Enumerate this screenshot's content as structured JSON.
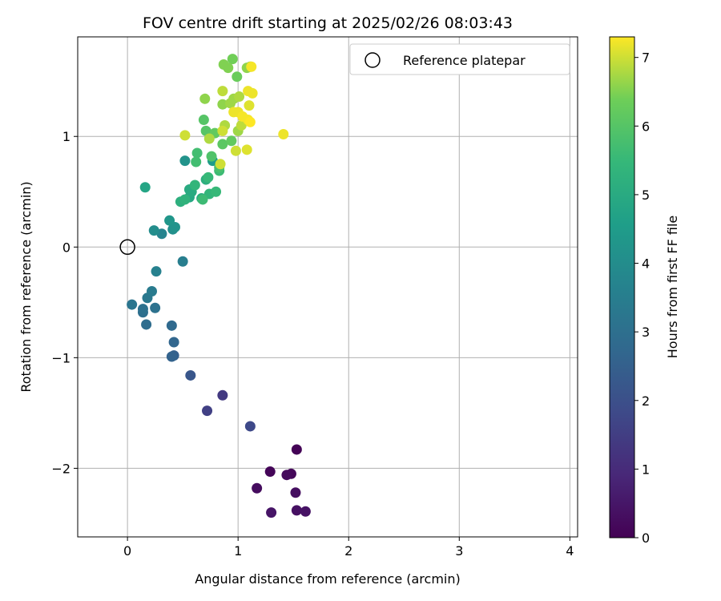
{
  "chart_data": {
    "type": "scatter",
    "title": "FOV centre drift starting at 2025/02/26 08:03:43",
    "xlabel": "Angular distance from reference (arcmin)",
    "ylabel": "Rotation from reference (arcmin)",
    "xlim": [
      -0.45,
      4.07
    ],
    "ylim": [
      -2.62,
      1.9
    ],
    "xticks": [
      0,
      1,
      2,
      3,
      4
    ],
    "yticks": [
      -2,
      -1,
      0,
      1
    ],
    "xtick_labels": [
      "0",
      "1",
      "2",
      "3",
      "4"
    ],
    "ytick_labels": [
      "−2",
      "−1",
      "0",
      "1"
    ],
    "grid": true,
    "legend": {
      "position": "top-right",
      "entries": [
        "Reference platepar"
      ]
    },
    "reference_point": {
      "x": 0,
      "y": 0
    },
    "colorbar": {
      "label": "Hours from first FF file",
      "colormap": "viridis",
      "range": [
        0,
        7.3
      ],
      "ticks": [
        0,
        1,
        2,
        3,
        4,
        5,
        6,
        7
      ],
      "tick_labels": [
        "0",
        "1",
        "2",
        "3",
        "4",
        "5",
        "6",
        "7"
      ]
    },
    "points": [
      {
        "x": 1.53,
        "y": -1.83,
        "t": 0.05
      },
      {
        "x": 1.29,
        "y": -2.03,
        "t": 0.1
      },
      {
        "x": 1.48,
        "y": -2.05,
        "t": 0.15
      },
      {
        "x": 1.44,
        "y": -2.06,
        "t": 0.2
      },
      {
        "x": 1.17,
        "y": -2.18,
        "t": 0.25
      },
      {
        "x": 1.52,
        "y": -2.22,
        "t": 0.3
      },
      {
        "x": 1.53,
        "y": -2.38,
        "t": 0.35
      },
      {
        "x": 1.61,
        "y": -2.39,
        "t": 0.4
      },
      {
        "x": 1.3,
        "y": -2.4,
        "t": 0.45
      },
      {
        "x": 0.86,
        "y": -1.34,
        "t": 1.4
      },
      {
        "x": 0.72,
        "y": -1.48,
        "t": 1.55
      },
      {
        "x": 1.11,
        "y": -1.62,
        "t": 1.8
      },
      {
        "x": 0.57,
        "y": -1.16,
        "t": 2.2
      },
      {
        "x": 0.42,
        "y": -0.98,
        "t": 2.5
      },
      {
        "x": 0.4,
        "y": -0.99,
        "t": 2.6
      },
      {
        "x": 0.42,
        "y": -0.86,
        "t": 2.7
      },
      {
        "x": 0.4,
        "y": -0.71,
        "t": 2.8
      },
      {
        "x": 0.17,
        "y": -0.7,
        "t": 2.9
      },
      {
        "x": 0.14,
        "y": -0.59,
        "t": 3.0
      },
      {
        "x": 0.14,
        "y": -0.56,
        "t": 3.05
      },
      {
        "x": 0.25,
        "y": -0.55,
        "t": 3.1
      },
      {
        "x": 0.04,
        "y": -0.52,
        "t": 3.2
      },
      {
        "x": 0.18,
        "y": -0.46,
        "t": 3.3
      },
      {
        "x": 0.22,
        "y": -0.4,
        "t": 3.4
      },
      {
        "x": 0.5,
        "y": -0.13,
        "t": 3.5
      },
      {
        "x": 0.26,
        "y": -0.22,
        "t": 3.6
      },
      {
        "x": 0.31,
        "y": 0.12,
        "t": 3.7
      },
      {
        "x": 0.24,
        "y": 0.15,
        "t": 4.0
      },
      {
        "x": 0.41,
        "y": 0.16,
        "t": 4.1
      },
      {
        "x": 0.43,
        "y": 0.18,
        "t": 4.2
      },
      {
        "x": 0.38,
        "y": 0.24,
        "t": 4.3
      },
      {
        "x": 0.52,
        "y": 0.78,
        "t": 4.2
      },
      {
        "x": 0.77,
        "y": 0.78,
        "t": 4.5
      },
      {
        "x": 0.16,
        "y": 0.54,
        "t": 4.8
      },
      {
        "x": 0.56,
        "y": 0.45,
        "t": 4.9
      },
      {
        "x": 0.58,
        "y": 0.5,
        "t": 5.0
      },
      {
        "x": 0.56,
        "y": 0.52,
        "t": 5.0
      },
      {
        "x": 0.67,
        "y": 0.44,
        "t": 5.1
      },
      {
        "x": 0.71,
        "y": 0.61,
        "t": 5.2
      },
      {
        "x": 0.48,
        "y": 0.41,
        "t": 5.2
      },
      {
        "x": 0.52,
        "y": 0.43,
        "t": 5.3
      },
      {
        "x": 0.61,
        "y": 0.56,
        "t": 5.4
      },
      {
        "x": 0.74,
        "y": 0.48,
        "t": 5.4
      },
      {
        "x": 0.8,
        "y": 0.5,
        "t": 5.5
      },
      {
        "x": 0.73,
        "y": 0.63,
        "t": 5.5
      },
      {
        "x": 0.68,
        "y": 0.43,
        "t": 5.6
      },
      {
        "x": 0.83,
        "y": 0.69,
        "t": 5.6
      },
      {
        "x": 0.63,
        "y": 0.85,
        "t": 5.7
      },
      {
        "x": 0.62,
        "y": 0.77,
        "t": 5.7
      },
      {
        "x": 0.83,
        "y": 0.72,
        "t": 5.8
      },
      {
        "x": 0.76,
        "y": 0.82,
        "t": 5.9
      },
      {
        "x": 0.69,
        "y": 1.15,
        "t": 6.0
      },
      {
        "x": 0.71,
        "y": 1.05,
        "t": 6.0
      },
      {
        "x": 0.86,
        "y": 0.93,
        "t": 6.1
      },
      {
        "x": 0.94,
        "y": 0.96,
        "t": 6.2
      },
      {
        "x": 0.79,
        "y": 1.03,
        "t": 6.2
      },
      {
        "x": 0.99,
        "y": 1.54,
        "t": 6.3
      },
      {
        "x": 0.95,
        "y": 1.7,
        "t": 6.4
      },
      {
        "x": 0.87,
        "y": 1.65,
        "t": 6.5
      },
      {
        "x": 0.91,
        "y": 1.62,
        "t": 6.5
      },
      {
        "x": 1.08,
        "y": 1.62,
        "t": 6.6
      },
      {
        "x": 1.11,
        "y": 1.63,
        "t": 6.6
      },
      {
        "x": 0.7,
        "y": 1.34,
        "t": 6.6
      },
      {
        "x": 0.86,
        "y": 1.29,
        "t": 6.6
      },
      {
        "x": 0.93,
        "y": 1.3,
        "t": 6.7
      },
      {
        "x": 1.0,
        "y": 1.05,
        "t": 6.7
      },
      {
        "x": 0.96,
        "y": 1.34,
        "t": 6.7
      },
      {
        "x": 1.01,
        "y": 1.36,
        "t": 6.8
      },
      {
        "x": 0.74,
        "y": 0.98,
        "t": 6.8
      },
      {
        "x": 0.88,
        "y": 1.1,
        "t": 6.8
      },
      {
        "x": 1.03,
        "y": 1.1,
        "t": 6.9
      },
      {
        "x": 0.86,
        "y": 1.41,
        "t": 6.9
      },
      {
        "x": 0.86,
        "y": 1.05,
        "t": 7.0
      },
      {
        "x": 0.52,
        "y": 1.01,
        "t": 7.0
      },
      {
        "x": 0.84,
        "y": 0.75,
        "t": 7.0
      },
      {
        "x": 0.98,
        "y": 0.87,
        "t": 7.0
      },
      {
        "x": 1.08,
        "y": 0.88,
        "t": 7.1
      },
      {
        "x": 1.41,
        "y": 1.02,
        "t": 7.2
      },
      {
        "x": 1.1,
        "y": 1.28,
        "t": 7.1
      },
      {
        "x": 1.09,
        "y": 1.41,
        "t": 7.2
      },
      {
        "x": 1.13,
        "y": 1.39,
        "t": 7.2
      },
      {
        "x": 1.12,
        "y": 1.63,
        "t": 7.25
      },
      {
        "x": 1.0,
        "y": 1.22,
        "t": 7.2
      },
      {
        "x": 0.96,
        "y": 1.22,
        "t": 7.2
      },
      {
        "x": 1.04,
        "y": 1.18,
        "t": 7.25
      },
      {
        "x": 1.09,
        "y": 1.15,
        "t": 7.25
      },
      {
        "x": 1.11,
        "y": 1.13,
        "t": 7.3
      }
    ]
  }
}
